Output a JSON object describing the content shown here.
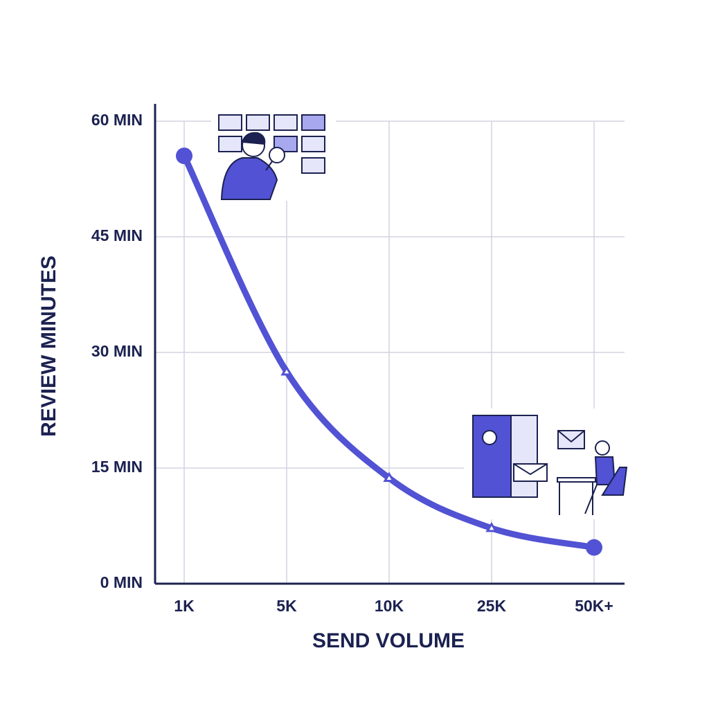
{
  "chart_data": {
    "type": "line",
    "x_label": "SEND VOLUME",
    "y_label": "REVIEW MINUTES",
    "categories": [
      "1K",
      "5K",
      "10K",
      "25K",
      "50K+"
    ],
    "series": [
      {
        "name": "Review minutes",
        "color": "#5252d4",
        "values": [
          55.5,
          27.5,
          13.7,
          7.2,
          4.7
        ]
      }
    ],
    "ylim": [
      0,
      60
    ],
    "yticks": [
      {
        "value": 0,
        "label": "0 MIN"
      },
      {
        "value": 15,
        "label": "15 MIN"
      },
      {
        "value": 30,
        "label": "30 MIN"
      },
      {
        "value": 45,
        "label": "45 MIN"
      },
      {
        "value": 60,
        "label": "60 MIN"
      }
    ],
    "grid": true
  }
}
